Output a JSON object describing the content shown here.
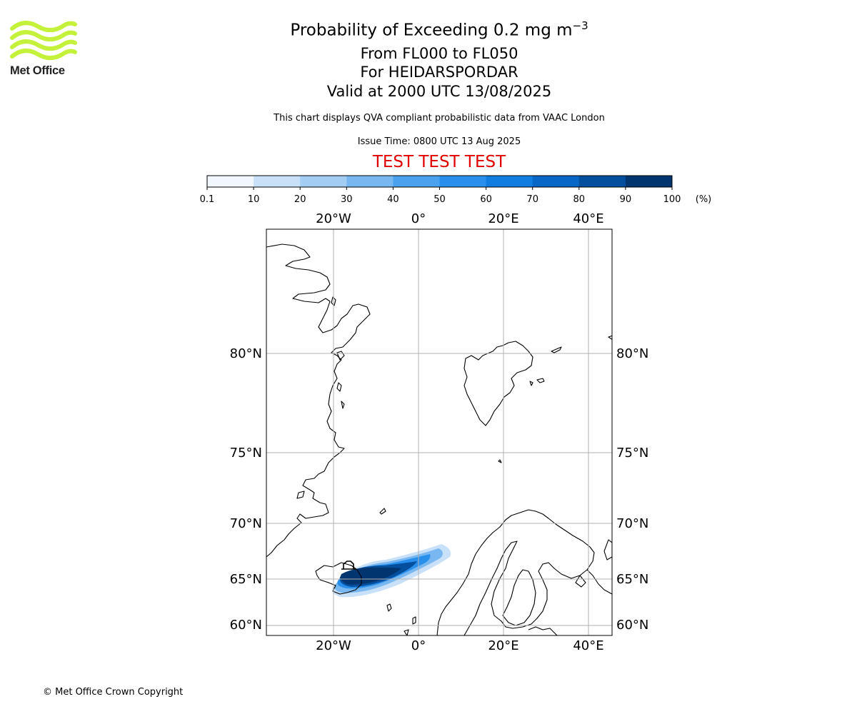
{
  "header": {
    "title": "Probability of Exceeding 0.2 mg m",
    "title_exp": "−3",
    "levels": "From FL000 to FL050",
    "location": "For HEIDARSPORDAR",
    "valid": "Valid at 2000 UTC 13/08/2025",
    "note": "This chart displays QVA compliant probabilistic data from VAAC London",
    "issue": "Issue Time: 0800 UTC 13 Aug 2025",
    "test": "TEST TEST TEST",
    "test_color": "#e00000"
  },
  "logo": {
    "text": "Met Office",
    "color": "#c4f23a"
  },
  "colorbar": {
    "ticks": [
      "0.1",
      "10",
      "20",
      "30",
      "40",
      "50",
      "60",
      "70",
      "80",
      "90",
      "100"
    ],
    "unit": "(%)",
    "colors": [
      "#f1f7fd",
      "#c8e1f8",
      "#a4cdf4",
      "#79b7f0",
      "#4aa2ee",
      "#2890ec",
      "#127de0",
      "#0766c6",
      "#034f9e",
      "#00356f"
    ]
  },
  "map": {
    "lon_labels": [
      "20°W",
      "0°",
      "20°E",
      "40°E"
    ],
    "lat_labels": [
      "80°N",
      "75°N",
      "70°N",
      "65°N",
      "60°N"
    ],
    "coast_color": "#000000",
    "grid_color": "#b0b0b0"
  },
  "footer": {
    "copyright": "© Met Office Crown Copyright"
  }
}
